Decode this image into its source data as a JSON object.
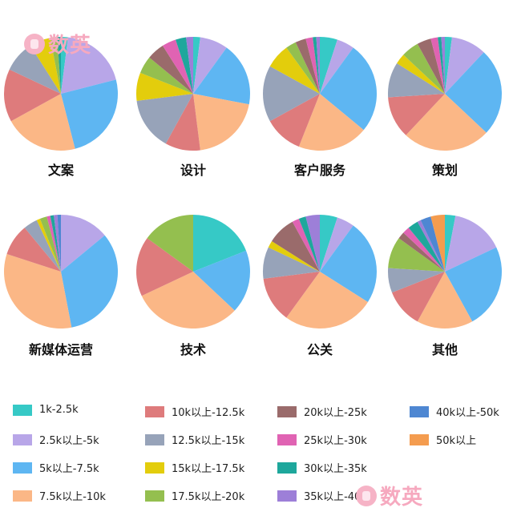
{
  "logo_text": "数英",
  "legend": [
    {
      "label": "1k-2.5k",
      "color": "#36c9c6"
    },
    {
      "label": "2.5k以上-5k",
      "color": "#b8a6e8"
    },
    {
      "label": "5k以上-7.5k",
      "color": "#5eb6f2"
    },
    {
      "label": "7.5k以上-10k",
      "color": "#fbb786"
    },
    {
      "label": "10k以上-12.5k",
      "color": "#de7b7c"
    },
    {
      "label": "12.5k以上-15k",
      "color": "#97a3b9"
    },
    {
      "label": "15k以上-17.5k",
      "color": "#e3cd0c"
    },
    {
      "label": "17.5k以上-20k",
      "color": "#94bf4f"
    },
    {
      "label": "20k以上-25k",
      "color": "#9a6b6b"
    },
    {
      "label": "25k以上-30k",
      "color": "#e063b3"
    },
    {
      "label": "30k以上-35k",
      "color": "#1ea79c"
    },
    {
      "label": "35k以上-40k",
      "color": "#9d7fd8"
    },
    {
      "label": "40k以上-50k",
      "color": "#4e87d2"
    },
    {
      "label": "50k以上",
      "color": "#f49c4f"
    }
  ],
  "chart_data": [
    {
      "type": "pie",
      "title": "文案",
      "values": [
        2,
        19,
        25,
        21,
        15,
        9,
        6,
        2,
        0,
        0,
        1,
        0,
        0,
        0
      ]
    },
    {
      "type": "pie",
      "title": "设计",
      "values": [
        2,
        8,
        18,
        20,
        10,
        15,
        8,
        5,
        5,
        4,
        3,
        2,
        0,
        0
      ]
    },
    {
      "type": "pie",
      "title": "客户服务",
      "values": [
        5,
        5,
        26,
        20,
        11,
        16,
        7,
        3,
        3,
        2,
        1,
        1,
        0,
        0
      ]
    },
    {
      "type": "pie",
      "title": "策划",
      "values": [
        2,
        10,
        25,
        25,
        12,
        10,
        3,
        5,
        4,
        2,
        1,
        1,
        0,
        0
      ]
    },
    {
      "type": "pie",
      "title": "新媒体运营",
      "values": [
        0,
        14,
        33,
        33,
        9,
        4,
        1,
        2,
        0,
        1,
        1,
        1,
        1,
        0
      ]
    },
    {
      "type": "pie",
      "title": "技术",
      "values": [
        19,
        0,
        18,
        31,
        17,
        0,
        0,
        15,
        0,
        0,
        0,
        0,
        0,
        0
      ]
    },
    {
      "type": "pie",
      "title": "公关",
      "values": [
        5,
        5,
        24,
        26,
        13,
        9,
        2,
        0,
        8,
        2,
        2,
        4,
        0,
        0
      ]
    },
    {
      "type": "pie",
      "title": "其他",
      "values": [
        3,
        15,
        24,
        16,
        11,
        7,
        0,
        9,
        2,
        2,
        3,
        1,
        3,
        4
      ]
    }
  ]
}
